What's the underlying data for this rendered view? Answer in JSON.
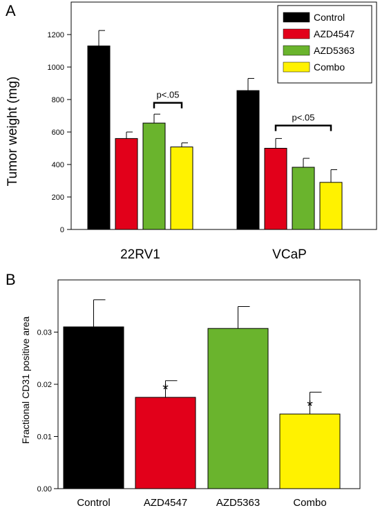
{
  "chart_data": [
    {
      "panel": "A",
      "type": "bar",
      "ylabel": "Tumor weight (mg)",
      "xlabel": "",
      "ylim": [
        0,
        1400
      ],
      "yticks": [
        0,
        200,
        400,
        600,
        800,
        1000,
        1200
      ],
      "categories": [
        "22RV1",
        "VCaP"
      ],
      "series": [
        {
          "name": "Control",
          "color": "#000000",
          "values": [
            1130,
            855
          ],
          "errors": [
            95,
            75
          ]
        },
        {
          "name": "AZD4547",
          "color": "#e2001a",
          "values": [
            560,
            500
          ],
          "errors": [
            40,
            60
          ]
        },
        {
          "name": "AZD5363",
          "color": "#6ab42d",
          "values": [
            655,
            383
          ],
          "errors": [
            55,
            55
          ]
        },
        {
          "name": "Combo",
          "color": "#fff200",
          "values": [
            508,
            290
          ],
          "errors": [
            25,
            78
          ]
        }
      ],
      "legend": "top-right",
      "grid": false,
      "annotations": [
        {
          "text": "p<.05",
          "category": 0,
          "from_series": 2,
          "to_series": 3,
          "y": 780
        },
        {
          "text": "p<.05",
          "category": 1,
          "from_series": 1,
          "to_series": 3,
          "y": 640
        }
      ]
    },
    {
      "panel": "B",
      "type": "bar",
      "ylabel": "Fractional CD31 positive area",
      "xlabel": "",
      "ylim": [
        0,
        0.04
      ],
      "yticks": [
        "0.00",
        "0.01",
        "0.02",
        "0.03"
      ],
      "categories": [
        "Control",
        "AZD4547",
        "AZD5363",
        "Combo"
      ],
      "values": [
        0.031,
        0.0175,
        0.0307,
        0.0143
      ],
      "errors": [
        0.0052,
        0.0032,
        0.0042,
        0.0042
      ],
      "colors": [
        "#000000",
        "#e2001a",
        "#6ab42d",
        "#fff200"
      ],
      "significance": [
        "",
        "*",
        "",
        "*"
      ],
      "grid": false
    }
  ]
}
